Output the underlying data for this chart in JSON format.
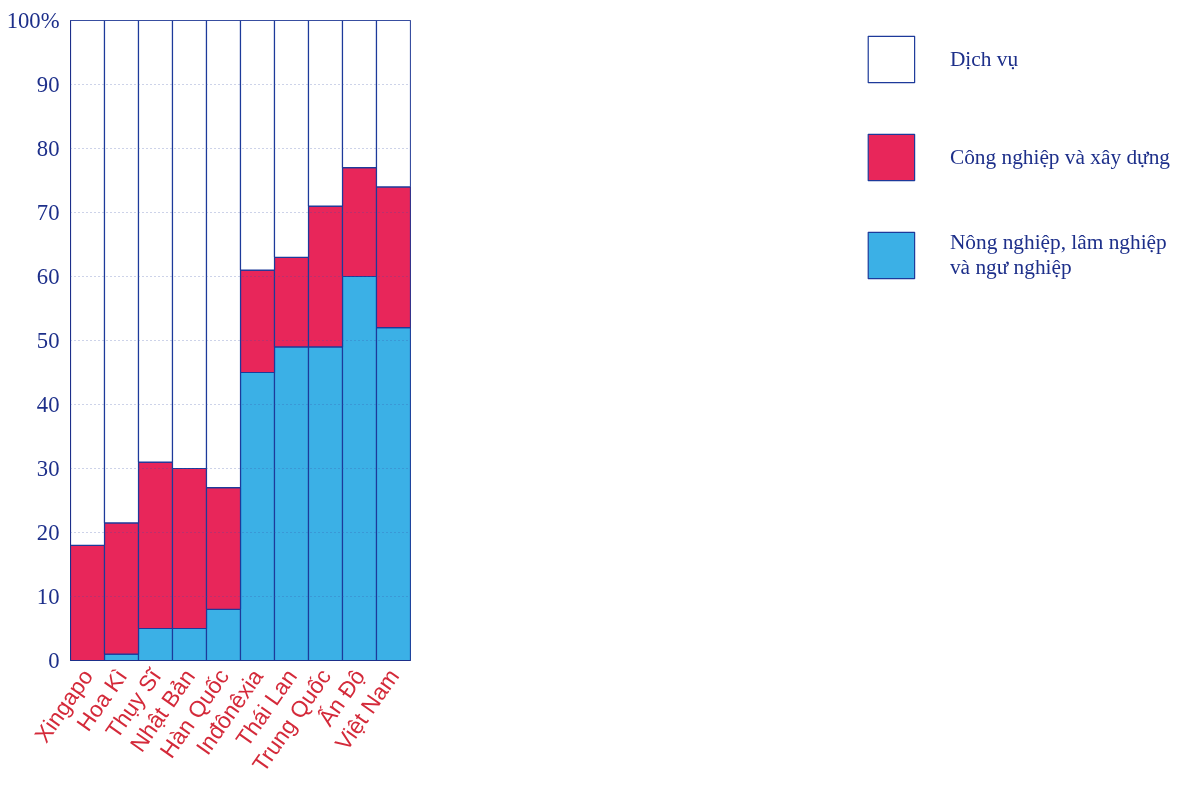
{
  "chart_data": {
    "type": "bar",
    "stacked": true,
    "categories": [
      "Xingapo",
      "Hoa Kì",
      "Thụy Sĩ",
      "Nhật Bản",
      "Hàn Quốc",
      "Inđônêxia",
      "Thái Lan",
      "Trung Quốc",
      "Ấn Độ",
      "Việt Nam"
    ],
    "series": [
      {
        "name": "Nông nghiệp, lâm nghiệp và ngư nghiệp",
        "color": "#3bb0e6",
        "values": [
          0,
          1,
          5,
          5,
          8,
          45,
          49,
          49,
          60,
          52
        ]
      },
      {
        "name": "Công nghiệp và xây dựng",
        "color": "#e8265a",
        "values": [
          18,
          20.5,
          26,
          25,
          19,
          16,
          14,
          22,
          17,
          22
        ]
      },
      {
        "name": "Dịch vụ",
        "color": "#ffffff",
        "values": [
          82,
          78.5,
          69,
          70,
          73,
          39,
          37,
          29,
          23,
          26
        ]
      }
    ],
    "ylim": [
      0,
      100
    ],
    "yticks": [
      0,
      10,
      20,
      30,
      40,
      50,
      60,
      70,
      80,
      90,
      {
        "value": 100,
        "label": "100%"
      }
    ],
    "grid": "y",
    "legend": "right"
  }
}
